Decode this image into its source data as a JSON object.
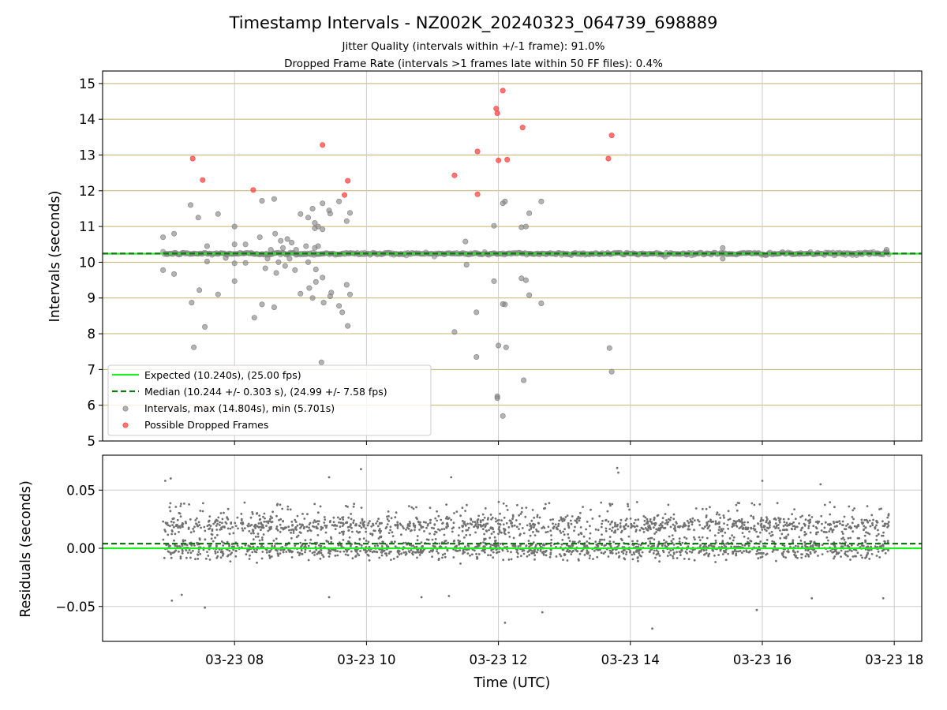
{
  "chart_data": [
    {
      "type": "scatter",
      "title": "Timestamp Intervals - NZ002K_20240323_064739_698889",
      "subtitle": [
        "Jitter Quality (intervals within +/-1 frame): 91.0%",
        "Dropped Frame Rate (intervals >1 frames late within 50 FF files): 0.4%"
      ],
      "ylabel": "Intervals (seconds)",
      "ylim": [
        5,
        15.35
      ],
      "yticks": [
        "5",
        "6",
        "7",
        "8",
        "9",
        "10",
        "11",
        "12",
        "13",
        "14",
        "15"
      ],
      "grid": true,
      "legend_position": "lower-left",
      "reference_lines": [
        {
          "name": "Expected (10.240s), (25.00 fps)",
          "value": 10.24,
          "color": "#22ee22",
          "style": "solid"
        },
        {
          "name": "Median (10.244 +/- 0.303 s), (24.99 +/- 7.58 fps)",
          "value": 10.244,
          "color": "#117711",
          "style": "dashed"
        }
      ],
      "series": [
        {
          "name": "Intervals, max (14.804s), min (5.701s)",
          "color": "#808080",
          "points": [
            {
              "x": "2024-03-23T06:55:00",
              "y": 10.7
            },
            {
              "x": "2024-03-23T06:55:00",
              "y": 9.78
            },
            {
              "x": "2024-03-23T07:05:00",
              "y": 10.8
            },
            {
              "x": "2024-03-23T07:05:00",
              "y": 9.67
            },
            {
              "x": "2024-03-23T07:20:00",
              "y": 11.6
            },
            {
              "x": "2024-03-23T07:21:00",
              "y": 8.87
            },
            {
              "x": "2024-03-23T07:23:00",
              "y": 7.62
            },
            {
              "x": "2024-03-23T07:27:00",
              "y": 11.25
            },
            {
              "x": "2024-03-23T07:28:00",
              "y": 9.22
            },
            {
              "x": "2024-03-23T07:33:00",
              "y": 8.19
            },
            {
              "x": "2024-03-23T07:35:00",
              "y": 10.45
            },
            {
              "x": "2024-03-23T07:35:00",
              "y": 10.02
            },
            {
              "x": "2024-03-23T07:45:00",
              "y": 11.35
            },
            {
              "x": "2024-03-23T07:45:00",
              "y": 9.1
            },
            {
              "x": "2024-03-23T07:52:00",
              "y": 10.12
            },
            {
              "x": "2024-03-23T08:00:00",
              "y": 10.5
            },
            {
              "x": "2024-03-23T08:00:00",
              "y": 9.97
            },
            {
              "x": "2024-03-23T08:00:00",
              "y": 9.47
            },
            {
              "x": "2024-03-23T08:00:00",
              "y": 11.0
            },
            {
              "x": "2024-03-23T08:10:00",
              "y": 10.5
            },
            {
              "x": "2024-03-23T08:10:00",
              "y": 9.98
            },
            {
              "x": "2024-03-23T08:18:00",
              "y": 8.45
            },
            {
              "x": "2024-03-23T08:23:00",
              "y": 10.7
            },
            {
              "x": "2024-03-23T08:25:00",
              "y": 11.72
            },
            {
              "x": "2024-03-23T08:25:00",
              "y": 8.82
            },
            {
              "x": "2024-03-23T08:28:00",
              "y": 9.83
            },
            {
              "x": "2024-03-23T08:30:00",
              "y": 10.1
            },
            {
              "x": "2024-03-23T08:33:00",
              "y": 10.35
            },
            {
              "x": "2024-03-23T08:36:00",
              "y": 11.77
            },
            {
              "x": "2024-03-23T08:36:00",
              "y": 8.74
            },
            {
              "x": "2024-03-23T08:37:00",
              "y": 10.8
            },
            {
              "x": "2024-03-23T08:38:00",
              "y": 9.7
            },
            {
              "x": "2024-03-23T08:40:00",
              "y": 10.0
            },
            {
              "x": "2024-03-23T08:42:00",
              "y": 10.6
            },
            {
              "x": "2024-03-23T08:44:00",
              "y": 10.4
            },
            {
              "x": "2024-03-23T08:46:00",
              "y": 9.9
            },
            {
              "x": "2024-03-23T08:48:00",
              "y": 10.65
            },
            {
              "x": "2024-03-23T08:50:00",
              "y": 10.1
            },
            {
              "x": "2024-03-23T08:52:00",
              "y": 10.55
            },
            {
              "x": "2024-03-23T08:55:00",
              "y": 9.78
            },
            {
              "x": "2024-03-23T08:56:00",
              "y": 10.35
            },
            {
              "x": "2024-03-23T09:00:00",
              "y": 11.35
            },
            {
              "x": "2024-03-23T09:00:00",
              "y": 9.12
            },
            {
              "x": "2024-03-23T09:05:00",
              "y": 10.45
            },
            {
              "x": "2024-03-23T09:07:00",
              "y": 11.25
            },
            {
              "x": "2024-03-23T09:07:00",
              "y": 10.0
            },
            {
              "x": "2024-03-23T09:08:00",
              "y": 9.28
            },
            {
              "x": "2024-03-23T09:11:00",
              "y": 11.5
            },
            {
              "x": "2024-03-23T09:11:00",
              "y": 9.0
            },
            {
              "x": "2024-03-23T09:13:00",
              "y": 11.1
            },
            {
              "x": "2024-03-23T09:13:00",
              "y": 10.95
            },
            {
              "x": "2024-03-23T09:13:00",
              "y": 10.4
            },
            {
              "x": "2024-03-23T09:14:00",
              "y": 9.8
            },
            {
              "x": "2024-03-23T09:14:00",
              "y": 9.45
            },
            {
              "x": "2024-03-23T09:16:00",
              "y": 11.0
            },
            {
              "x": "2024-03-23T09:16:00",
              "y": 10.45
            },
            {
              "x": "2024-03-23T09:19:00",
              "y": 7.2
            },
            {
              "x": "2024-03-23T09:20:00",
              "y": 11.65
            },
            {
              "x": "2024-03-23T09:20:00",
              "y": 10.92
            },
            {
              "x": "2024-03-23T09:20:00",
              "y": 9.57
            },
            {
              "x": "2024-03-23T09:21:00",
              "y": 8.87
            },
            {
              "x": "2024-03-23T09:26:00",
              "y": 11.45
            },
            {
              "x": "2024-03-23T09:27:00",
              "y": 11.36
            },
            {
              "x": "2024-03-23T09:27:00",
              "y": 9.05
            },
            {
              "x": "2024-03-23T09:28:00",
              "y": 9.15
            },
            {
              "x": "2024-03-23T09:35:00",
              "y": 11.7
            },
            {
              "x": "2024-03-23T09:35:00",
              "y": 8.78
            },
            {
              "x": "2024-03-23T09:38:00",
              "y": 8.6
            },
            {
              "x": "2024-03-23T09:42:00",
              "y": 11.15
            },
            {
              "x": "2024-03-23T09:42:00",
              "y": 9.37
            },
            {
              "x": "2024-03-23T09:43:00",
              "y": 8.22
            },
            {
              "x": "2024-03-23T09:45:00",
              "y": 11.38
            },
            {
              "x": "2024-03-23T09:45:00",
              "y": 9.1
            },
            {
              "x": "2024-03-23T11:20:00",
              "y": 8.05
            },
            {
              "x": "2024-03-23T11:30:00",
              "y": 10.58
            },
            {
              "x": "2024-03-23T11:31:00",
              "y": 9.93
            },
            {
              "x": "2024-03-23T11:40:00",
              "y": 8.6
            },
            {
              "x": "2024-03-23T11:40:00",
              "y": 7.35
            },
            {
              "x": "2024-03-23T11:56:00",
              "y": 11.02
            },
            {
              "x": "2024-03-23T11:56:00",
              "y": 9.47
            },
            {
              "x": "2024-03-23T11:59:00",
              "y": 6.2
            },
            {
              "x": "2024-03-23T11:59:00",
              "y": 6.25
            },
            {
              "x": "2024-03-23T12:00:00",
              "y": 7.67
            },
            {
              "x": "2024-03-23T12:04:00",
              "y": 11.65
            },
            {
              "x": "2024-03-23T12:04:00",
              "y": 8.83
            },
            {
              "x": "2024-03-23T12:04:00",
              "y": 5.7
            },
            {
              "x": "2024-03-23T12:06:00",
              "y": 11.7
            },
            {
              "x": "2024-03-23T12:06:00",
              "y": 8.82
            },
            {
              "x": "2024-03-23T12:07:00",
              "y": 7.62
            },
            {
              "x": "2024-03-23T12:21:00",
              "y": 10.98
            },
            {
              "x": "2024-03-23T12:21:00",
              "y": 9.55
            },
            {
              "x": "2024-03-23T12:23:00",
              "y": 6.7
            },
            {
              "x": "2024-03-23T12:25:00",
              "y": 11.0
            },
            {
              "x": "2024-03-23T12:25:00",
              "y": 9.5
            },
            {
              "x": "2024-03-23T12:28:00",
              "y": 11.37
            },
            {
              "x": "2024-03-23T12:28:00",
              "y": 9.08
            },
            {
              "x": "2024-03-23T12:39:00",
              "y": 11.7
            },
            {
              "x": "2024-03-23T12:39:00",
              "y": 8.85
            },
            {
              "x": "2024-03-23T13:41:00",
              "y": 7.6
            },
            {
              "x": "2024-03-23T13:43:00",
              "y": 6.94
            },
            {
              "x": "2024-03-23T15:24:00",
              "y": 10.4
            },
            {
              "x": "2024-03-23T15:24:00",
              "y": 10.1
            },
            {
              "x": "2024-03-23T17:53:00",
              "y": 10.35
            }
          ]
        },
        {
          "name": "Possible Dropped Frames",
          "color": "#ff4444",
          "points": [
            {
              "x": "2024-03-23T07:22:00",
              "y": 12.9
            },
            {
              "x": "2024-03-23T07:31:00",
              "y": 12.3
            },
            {
              "x": "2024-03-23T08:17:00",
              "y": 12.02
            },
            {
              "x": "2024-03-23T09:20:00",
              "y": 13.28
            },
            {
              "x": "2024-03-23T09:40:00",
              "y": 11.88
            },
            {
              "x": "2024-03-23T09:43:00",
              "y": 12.28
            },
            {
              "x": "2024-03-23T11:20:00",
              "y": 12.43
            },
            {
              "x": "2024-03-23T11:41:00",
              "y": 13.1
            },
            {
              "x": "2024-03-23T11:41:00",
              "y": 11.9
            },
            {
              "x": "2024-03-23T11:58:00",
              "y": 14.3
            },
            {
              "x": "2024-03-23T11:59:00",
              "y": 14.17
            },
            {
              "x": "2024-03-23T12:00:00",
              "y": 12.85
            },
            {
              "x": "2024-03-23T12:04:00",
              "y": 14.8
            },
            {
              "x": "2024-03-23T12:08:00",
              "y": 12.87
            },
            {
              "x": "2024-03-23T12:22:00",
              "y": 13.77
            },
            {
              "x": "2024-03-23T13:40:00",
              "y": 12.9
            },
            {
              "x": "2024-03-23T13:43:00",
              "y": 13.55
            }
          ]
        }
      ],
      "dense_band": {
        "x_start": "2024-03-23T06:55:00",
        "x_end": "2024-03-23T17:55:00",
        "y": 10.24,
        "color": "#808080"
      }
    },
    {
      "type": "scatter",
      "ylabel": "Residuals (seconds)",
      "xlabel": "Time (UTC)",
      "ylim": [
        -0.08,
        0.08
      ],
      "yticks": [
        "−0.05",
        "0.00",
        "0.05"
      ],
      "xticks": [
        "03-23 08",
        "03-23 10",
        "03-23 12",
        "03-23 14",
        "03-23 16",
        "03-23 18"
      ],
      "grid": true,
      "x_range": [
        "2024-03-23T06:00:00",
        "2024-03-23T18:25:00"
      ],
      "reference_lines": [
        {
          "value": 0.0,
          "color": "#22ee22",
          "style": "solid"
        },
        {
          "value": 0.004,
          "color": "#117711",
          "style": "dashed"
        }
      ],
      "series": [
        {
          "name": "Residuals",
          "color": "#707070",
          "x_range": [
            "2024-03-23T06:55:00",
            "2024-03-23T17:55:00"
          ],
          "bands": [
            0.0,
            0.02
          ],
          "spread": 0.025,
          "count": 2600,
          "points": [
            {
              "x": "2024-03-23T09:55:00",
              "y": 0.068
            },
            {
              "x": "2024-03-23T11:17:00",
              "y": 0.061
            },
            {
              "x": "2024-03-23T13:48:00",
              "y": 0.069
            },
            {
              "x": "2024-03-23T13:49:00",
              "y": 0.065
            },
            {
              "x": "2024-03-23T07:02:00",
              "y": 0.06
            },
            {
              "x": "2024-03-23T06:57:00",
              "y": 0.058
            },
            {
              "x": "2024-03-23T09:26:00",
              "y": 0.061
            },
            {
              "x": "2024-03-23T16:00:00",
              "y": 0.058
            },
            {
              "x": "2024-03-23T16:53:00",
              "y": 0.055
            },
            {
              "x": "2024-03-23T07:03:00",
              "y": -0.045
            },
            {
              "x": "2024-03-23T07:12:00",
              "y": -0.04
            },
            {
              "x": "2024-03-23T07:33:00",
              "y": -0.051
            },
            {
              "x": "2024-03-23T09:26:00",
              "y": -0.042
            },
            {
              "x": "2024-03-23T10:50:00",
              "y": -0.042
            },
            {
              "x": "2024-03-23T11:15:00",
              "y": -0.041
            },
            {
              "x": "2024-03-23T12:06:00",
              "y": -0.064
            },
            {
              "x": "2024-03-23T12:40:00",
              "y": -0.055
            },
            {
              "x": "2024-03-23T14:20:00",
              "y": -0.069
            },
            {
              "x": "2024-03-23T15:55:00",
              "y": -0.053
            },
            {
              "x": "2024-03-23T16:45:00",
              "y": -0.043
            },
            {
              "x": "2024-03-23T17:50:00",
              "y": -0.043
            }
          ]
        }
      ]
    }
  ]
}
